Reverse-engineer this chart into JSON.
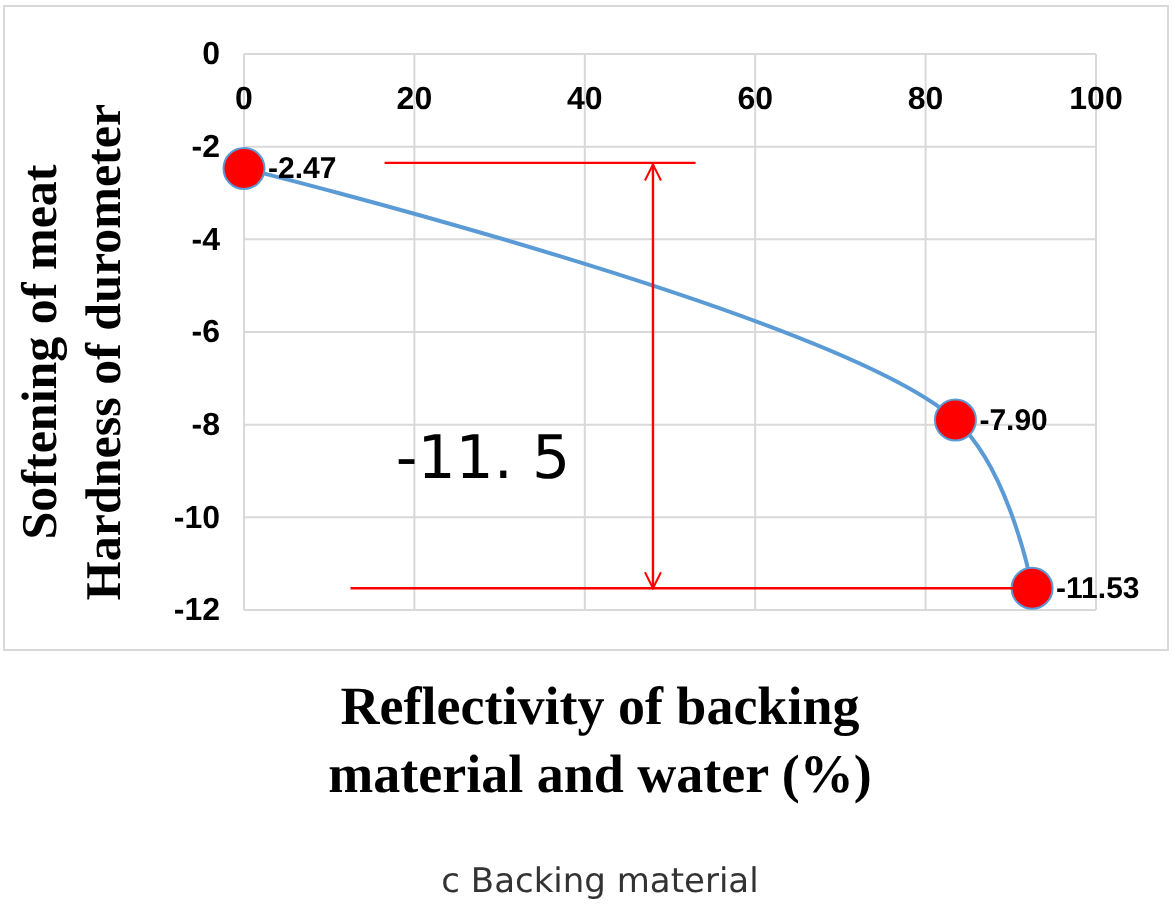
{
  "chart_data": {
    "type": "line",
    "xlabel": "Reflectivity of backing\nmaterial and water (%)",
    "ylabel": "Softening of meat\nHardness of durometer",
    "x": [
      0,
      83.5,
      92.5
    ],
    "series": [
      {
        "type": "line",
        "color": "#5b9bd5",
        "values": [
          -2.47,
          -7.9,
          -11.53
        ],
        "marker": "none"
      },
      {
        "type": "scatter",
        "color": "#ff0000",
        "values": [
          -2.47,
          -7.9,
          -11.53
        ],
        "marker": "circle",
        "value_labels": [
          "-2.47",
          "-7.90",
          "-11.53"
        ]
      },
      {
        "type": "line",
        "color": "#ff0000",
        "x": [
          16.5,
          53
        ],
        "values": [
          -2.35,
          -2.35
        ],
        "marker": "none"
      },
      {
        "type": "line",
        "color": "#ff0000",
        "x": [
          12.5,
          92.5
        ],
        "values": [
          -11.53,
          -11.53
        ],
        "marker": "none"
      },
      {
        "type": "line",
        "color": "#ff0000",
        "x": [
          48,
          48
        ],
        "values": [
          -2.35,
          -11.53
        ],
        "marker": "none"
      }
    ],
    "xlim": [
      0,
      100
    ],
    "xticks": [
      0,
      20,
      40,
      60,
      80,
      100
    ],
    "ylim": [
      -12,
      0
    ],
    "yticks": [
      0,
      -2,
      -4,
      -6,
      -8,
      -10,
      -12
    ],
    "grid": true,
    "annotations": [
      "-11. 5",
      "c Backing material"
    ]
  }
}
